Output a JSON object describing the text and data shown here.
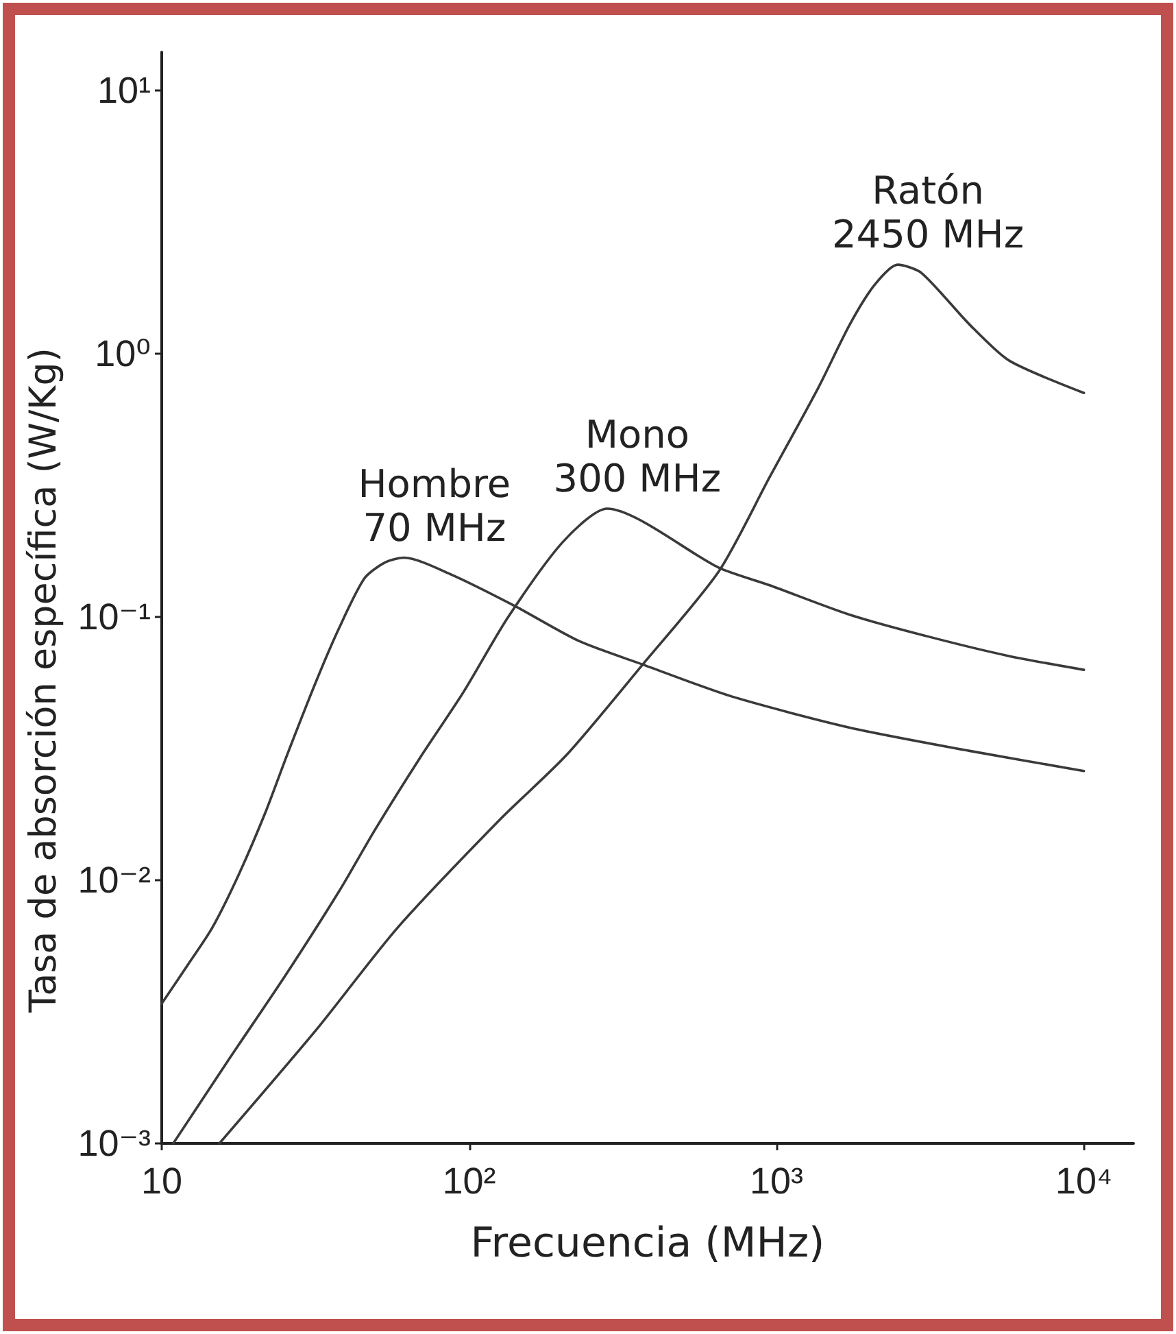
{
  "chart_data": {
    "type": "line",
    "xlabel": "Frecuencia (MHz)",
    "ylabel": "Tasa de absorción específica (W/Kg)",
    "log": "xy",
    "grid": false,
    "legend": false,
    "marker": "none",
    "line_style": "solid",
    "xlim": [
      10,
      14500
    ],
    "ylim": [
      0.001,
      14
    ],
    "xticks": [
      10,
      {
        "value": 100,
        "label": "10²"
      },
      {
        "value": 1000,
        "label": "10³"
      },
      {
        "value": 10000,
        "label": "10⁴"
      }
    ],
    "yticks": [
      {
        "value": 0.001,
        "label": "10⁻³"
      },
      {
        "value": 0.01,
        "label": "10⁻²"
      },
      {
        "value": 0.1,
        "label": "10⁻¹"
      },
      {
        "value": 1,
        "label": "10⁰"
      },
      {
        "value": 10,
        "label": "10¹"
      }
    ],
    "series": [
      {
        "name": "Hombre",
        "color": "#3a3a3a",
        "x": [
          10,
          12.2,
          14.6,
          17.8,
          21.7,
          25.6,
          31.8,
          37.8,
          45.6,
          53.2,
          61.5,
          87.4,
          141,
          228,
          367,
          711,
          1730,
          4250,
          10000
        ],
        "values": [
          0.0034,
          0.0048,
          0.0066,
          0.0105,
          0.018,
          0.03,
          0.057,
          0.091,
          0.14,
          0.161,
          0.168,
          0.145,
          0.11,
          0.081,
          0.066,
          0.05,
          0.038,
          0.031,
          0.026
        ]
      },
      {
        "name": "Mono",
        "color": "#3a3a3a",
        "x": [
          10.9,
          16.6,
          25.1,
          37.8,
          49.5,
          69,
          96,
          134,
          202,
          281,
          649,
          950,
          1730,
          3150,
          5730,
          10000
        ],
        "values": [
          0.001,
          0.0021,
          0.0043,
          0.0091,
          0.0156,
          0.029,
          0.052,
          0.1,
          0.193,
          0.258,
          0.154,
          0.132,
          0.102,
          0.084,
          0.071,
          0.063
        ]
      },
      {
        "name": "Ratón",
        "color": "#3a3a3a",
        "x": [
          15.4,
          31.8,
          58.5,
          126,
          208,
          367,
          649,
          950,
          1365,
          1730,
          2080,
          2480,
          2960,
          4250,
          5730,
          10000
        ],
        "values": [
          0.001,
          0.0027,
          0.0066,
          0.017,
          0.03,
          0.066,
          0.149,
          0.34,
          0.74,
          1.29,
          1.82,
          2.18,
          2.03,
          1.29,
          0.94,
          0.71
        ]
      }
    ],
    "annotations": [
      {
        "text": "70 MHz",
        "x": 61.5,
        "y": 0.168
      },
      {
        "text": "300 MHz",
        "x": 281,
        "y": 0.258
      },
      {
        "text": "2450 MHz",
        "x": 2480,
        "y": 2.18
      }
    ]
  }
}
